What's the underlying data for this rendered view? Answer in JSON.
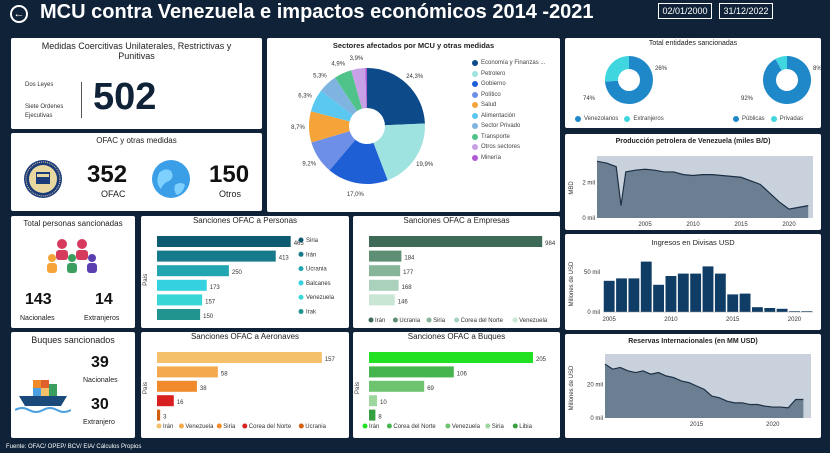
{
  "header": {
    "back_icon": "arrow-left-icon",
    "title": "MCU contra Venezuela e impactos económicos 2014 -2021",
    "date_start": "02/01/2000",
    "date_end": "31/12/2022"
  },
  "medidas": {
    "title": "Medidas Coercitivas Unilaterales, Restrictivas y Punitivas",
    "label1": "Dos Leyes",
    "label2": "Siete Ordenes Ejecutivas",
    "total": "502"
  },
  "ofac": {
    "title": "OFAC y otras medidas",
    "ofac_value": "352",
    "ofac_label": "OFAC",
    "otros_value": "150",
    "otros_label": "Otros"
  },
  "personas": {
    "title": "Total personas sancionadas",
    "nacionales_value": "143",
    "nacionales_label": "Nacionales",
    "extranjeros_value": "14",
    "extranjeros_label": "Extranjeros"
  },
  "buques": {
    "title": "Buques sancionados",
    "nacionales_value": "39",
    "nacionales_label": "Nacionales",
    "extranjero_value": "30",
    "extranjero_label": "Extranjero"
  },
  "footer": "Fuente: OFAC/ OPEP/ BCV/ EIA/ Cálculos Propios",
  "chart_data": [
    {
      "id": "sectores",
      "type": "pie",
      "title": "Sectores afectados por MCU y otras medidas",
      "labels": [
        "Economía y Finanzas ...",
        "Petrolero",
        "Gobierno",
        "Político",
        "Salud",
        "Alimentación",
        "Sector Privado",
        "Transporte",
        "Otros sectores",
        "Minería"
      ],
      "values": [
        24.3,
        19.9,
        17.0,
        9.2,
        8.7,
        6.3,
        5.3,
        4.9,
        3.9,
        0.5
      ],
      "value_labels": [
        "24,3%",
        "19,9%",
        "17,0%",
        "9,2%",
        "8,7%",
        "6,3%",
        "5,3%",
        "4,9%",
        "3,9%",
        ""
      ],
      "colors": [
        "#0d4a8a",
        "#9fe3e0",
        "#1f5fd6",
        "#6e8fe6",
        "#f5a43a",
        "#5ac8f0",
        "#7fb4e0",
        "#4fc38a",
        "#c8a0e6",
        "#b05ad6"
      ]
    },
    {
      "id": "entidades",
      "type": "pie",
      "title": "Total entidades sancionadas",
      "charts": [
        {
          "labels": [
            "Venezolanos",
            "Extranjeros"
          ],
          "values": [
            74,
            26
          ],
          "value_labels": [
            "74%",
            "26%"
          ],
          "colors": [
            "#1e88c8",
            "#3fd6e0"
          ]
        },
        {
          "labels": [
            "Públicas",
            "Privadas"
          ],
          "values": [
            92,
            8
          ],
          "value_labels": [
            "92%",
            "8%"
          ],
          "colors": [
            "#1e88c8",
            "#3fd6e0"
          ]
        }
      ]
    },
    {
      "id": "produccion",
      "type": "area",
      "title": "Producción petrolera de Venezuela (miles B/D)",
      "ylabel": "MBD",
      "y_ticks": [
        "0 mil",
        "2 mil"
      ],
      "x_ticks": [
        "2005",
        "2010",
        "2015",
        "2020"
      ],
      "x": [
        2000,
        2001,
        2002,
        2002.5,
        2003,
        2004,
        2005,
        2006,
        2007,
        2008,
        2009,
        2010,
        2011,
        2012,
        2013,
        2014,
        2015,
        2016,
        2017,
        2018,
        2019,
        2020,
        2021,
        2022
      ],
      "y": [
        3200,
        3100,
        2900,
        700,
        2600,
        2700,
        2750,
        2700,
        2600,
        2600,
        2450,
        2400,
        2450,
        2450,
        2400,
        2350,
        2300,
        2100,
        1900,
        1400,
        900,
        500,
        600,
        700
      ],
      "ylim": [
        0,
        3500
      ]
    },
    {
      "id": "divisas",
      "type": "bar",
      "title": "Ingresos en Divisas USD",
      "ylabel": "Millones de USD",
      "y_ticks": [
        "0 mil",
        "50 mil"
      ],
      "x_ticks": [
        "2005",
        "2010",
        "2015",
        "2020"
      ],
      "categories": [
        "2005",
        "2006",
        "2007",
        "2008",
        "2009",
        "2010",
        "2011",
        "2012",
        "2013",
        "2014",
        "2015",
        "2016",
        "2017",
        "2018",
        "2019",
        "2020",
        "2021"
      ],
      "values": [
        39000,
        42000,
        42000,
        63000,
        34000,
        45000,
        48000,
        48000,
        57000,
        48000,
        22000,
        23000,
        6000,
        5000,
        4000,
        1000,
        1000
      ],
      "ylim": [
        0,
        70000
      ],
      "color": "#0f3d66"
    },
    {
      "id": "reservas",
      "type": "area",
      "title": "Reservas Internacionales (en MM USD)",
      "ylabel": "Millones de USD",
      "y_ticks": [
        "0 mil",
        "20 mil"
      ],
      "x_ticks": [
        "2015",
        "2020"
      ],
      "x": [
        2009,
        2009.5,
        2010,
        2010.5,
        2011,
        2011.5,
        2012,
        2012.5,
        2013,
        2013.5,
        2014,
        2014.5,
        2015,
        2015.5,
        2016,
        2016.5,
        2017,
        2017.5,
        2018,
        2018.5,
        2019,
        2019.5,
        2020,
        2020.5,
        2021,
        2021.5,
        2022
      ],
      "y": [
        32000,
        29000,
        30000,
        28000,
        27000,
        28000,
        26000,
        27000,
        25000,
        24000,
        22000,
        21000,
        19000,
        17000,
        13000,
        12000,
        10000,
        9000,
        9000,
        8000,
        8000,
        7000,
        6500,
        6500,
        6000,
        11000,
        11000
      ],
      "ylim": [
        0,
        38000
      ]
    },
    {
      "id": "sanc_personas",
      "type": "bar",
      "title": "Sanciones OFAC a Personas",
      "ylabel": "País",
      "categories": [
        "Siria",
        "Irán",
        "Ucrania",
        "Balcanes",
        "Venezuela",
        "Irak"
      ],
      "values": [
        465,
        413,
        250,
        173,
        157,
        150
      ],
      "colors": [
        "#0e5a70",
        "#177a8a",
        "#21a5b0",
        "#34d2e0",
        "#39d6d6",
        "#21948f"
      ],
      "xlim": [
        0,
        480
      ]
    },
    {
      "id": "sanc_empresas",
      "type": "bar",
      "title": "Sanciones OFAC a Empresas",
      "categories": [
        "Irán",
        "Ucrania",
        "Siria",
        "Corea del Norte",
        "Venezuela"
      ],
      "values": [
        984,
        184,
        177,
        168,
        146
      ],
      "colors": [
        "#3e6b57",
        "#5e8f74",
        "#86b599",
        "#a9d1bb",
        "#c9e6d5"
      ],
      "xlim": [
        0,
        1000
      ]
    },
    {
      "id": "sanc_aeronaves",
      "type": "bar",
      "title": "Sanciones OFAC a Aeronaves",
      "ylabel": "País",
      "categories": [
        "Irán",
        "Venezuela",
        "Siria",
        "Corea del Norte",
        "Ucrania"
      ],
      "values": [
        157,
        58,
        38,
        16,
        3
      ],
      "colors": [
        "#f5c06a",
        "#f5a94f",
        "#f08a2b",
        "#d92020",
        "#d06010"
      ],
      "xlim": [
        0,
        160
      ]
    },
    {
      "id": "sanc_buques",
      "type": "bar",
      "title": "Sanciones OFAC a Buques",
      "ylabel": "País",
      "categories": [
        "Irán",
        "Corea del Norte",
        "Venezuela",
        "Siria",
        "Libia"
      ],
      "values": [
        205,
        106,
        69,
        10,
        8
      ],
      "colors": [
        "#22e022",
        "#46b54e",
        "#6ec46e",
        "#9ed79e",
        "#36a040"
      ],
      "xlim": [
        0,
        210
      ]
    }
  ]
}
